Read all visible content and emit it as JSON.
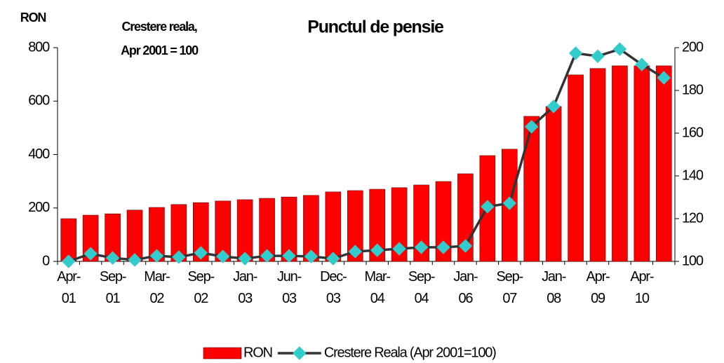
{
  "chart_data": {
    "type": "bar",
    "title": "Punctul de pensie",
    "y_label": "RON",
    "y2_label": "Crestere reala,\nApr 2001 = 100",
    "categories": [
      "Apr-\n01",
      null,
      "Sep-\n01",
      null,
      "Mar-\n02",
      null,
      "Sep-\n02",
      null,
      "Jan-\n03",
      null,
      "Jun-\n03",
      null,
      "Dec-\n03",
      null,
      "Mar-\n04",
      null,
      "Sep-\n04",
      null,
      "Jan-\n06",
      null,
      "Sep-\n07",
      null,
      "Jan-\n08",
      null,
      "Apr-\n09",
      null,
      "Apr-\n10",
      null
    ],
    "series": [
      {
        "name": "RON",
        "type": "bar",
        "color": "#ff0000",
        "values": [
          160,
          173,
          178,
          192,
          202,
          213,
          220,
          226,
          231,
          236,
          241,
          247,
          260,
          265,
          270,
          276,
          286,
          299,
          328,
          396,
          420,
          543,
          580,
          698,
          722,
          732,
          732,
          732
        ]
      },
      {
        "name": "Crestere Reala (Apr 2001=100)",
        "type": "line",
        "axis": "y2",
        "color": "#33cccc",
        "line_color": "#333333",
        "values": [
          100,
          103.6,
          101.6,
          100.7,
          102.6,
          102,
          104,
          102.3,
          101.3,
          102.6,
          102.6,
          102.3,
          101.3,
          104.6,
          105.2,
          105.9,
          106.6,
          106.6,
          107.2,
          125.6,
          127.2,
          163,
          172.5,
          197.4,
          196,
          199.3,
          192.1,
          185.9
        ]
      }
    ],
    "ylim": [
      0,
      800
    ],
    "yticks": [
      0,
      200,
      400,
      600,
      800
    ],
    "y2lim": [
      100,
      200
    ],
    "y2ticks": [
      100,
      120,
      140,
      160,
      180,
      200
    ],
    "legend": "bottom"
  }
}
